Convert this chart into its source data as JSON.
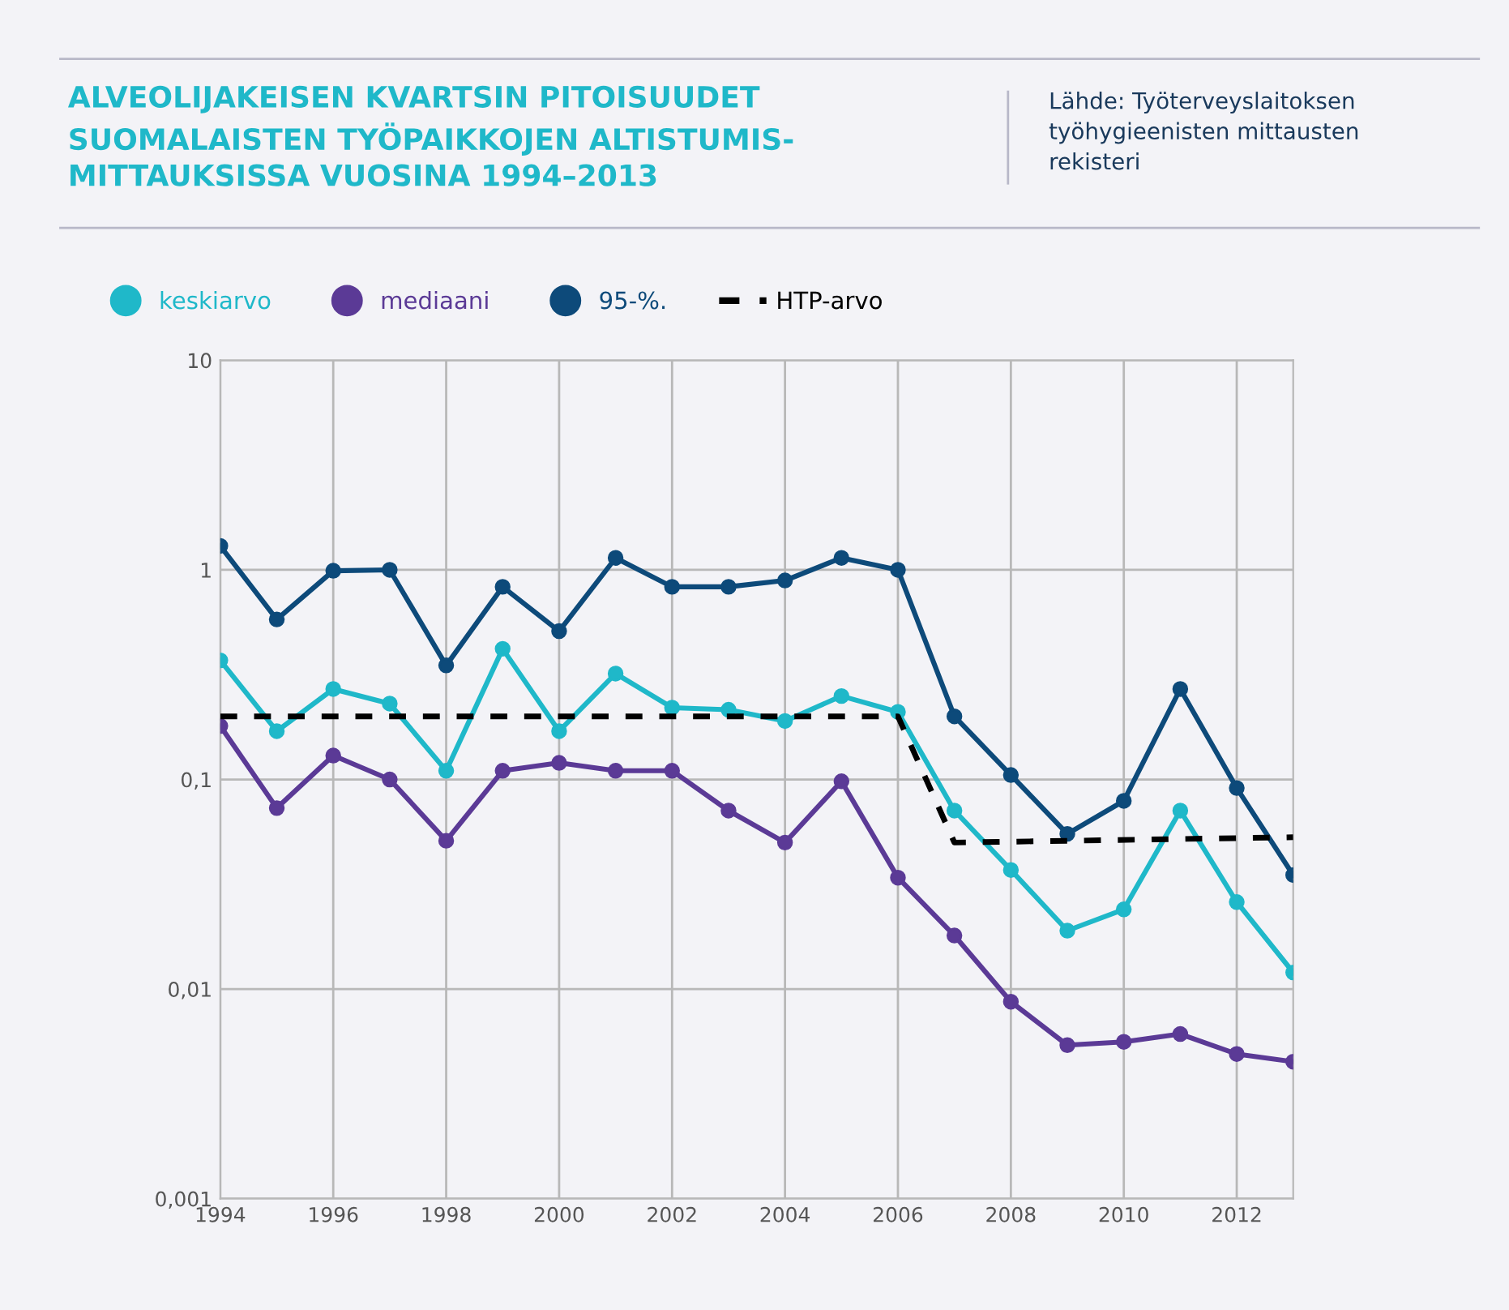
{
  "chart_data": {
    "type": "line",
    "title": "ALVEOLIJAKEISEN KVARTSIN PITOISUUDET\nSUOMALAISTEN TYÖPAIKKOJEN ALTISTUMIS-\nMITTAUKSISSA VUOSINA 1994–2013",
    "annotations": [
      "Lähde: Työterveyslaitoksen\ntyöhygieenisten mittausten\nrekisteri"
    ],
    "x": [
      1994,
      1995,
      1996,
      1997,
      1998,
      1999,
      2000,
      2001,
      2002,
      2003,
      2004,
      2005,
      2006,
      2007,
      2008,
      2009,
      2010,
      2011,
      2012,
      2013
    ],
    "series": [
      {
        "name": "keskiarvo",
        "color": "#1fb8c9",
        "values": [
          0.37,
          0.17,
          0.27,
          0.23,
          0.11,
          0.42,
          0.17,
          0.32,
          0.22,
          0.215,
          0.19,
          0.25,
          0.21,
          0.071,
          0.037,
          0.019,
          0.024,
          0.071,
          0.026,
          0.012
        ]
      },
      {
        "name": "mediaani",
        "color": "#5b3a96",
        "values": [
          0.18,
          0.073,
          0.13,
          0.1,
          0.051,
          0.11,
          0.12,
          0.11,
          0.11,
          0.071,
          0.05,
          0.098,
          0.034,
          0.018,
          0.0087,
          0.0054,
          0.0056,
          0.0061,
          0.0049,
          0.0045
        ]
      },
      {
        "name": "95-%.",
        "color": "#0d4a7a",
        "values": [
          1.3,
          0.58,
          0.99,
          1.0,
          0.35,
          0.83,
          0.51,
          1.14,
          0.83,
          0.83,
          0.89,
          1.14,
          1.0,
          0.2,
          0.105,
          0.055,
          0.079,
          0.27,
          0.091,
          0.035
        ]
      },
      {
        "name": "HTP-arvo",
        "color": "#000000",
        "marker": "none",
        "line_style": "dashed",
        "x": [
          1994,
          2006,
          2007,
          2013
        ],
        "values": [
          0.2,
          0.2,
          0.05,
          0.053
        ]
      }
    ],
    "marker": "circle",
    "line_style": "solid",
    "log": "y",
    "grid": true,
    "legend": "top left",
    "xlim": [
      1994,
      2013
    ],
    "xticks": [
      1994,
      1996,
      1998,
      2000,
      2002,
      2004,
      2006,
      2008,
      2010,
      2012
    ],
    "ylim": [
      0.001,
      10
    ],
    "yticks": [
      {
        "value": 0.001,
        "label": "0,001"
      },
      {
        "value": 0.01,
        "label": "0,01"
      },
      {
        "value": 0.1,
        "label": "0,1"
      },
      {
        "value": 1,
        "label": "1"
      },
      {
        "value": 10,
        "label": "10"
      }
    ]
  }
}
